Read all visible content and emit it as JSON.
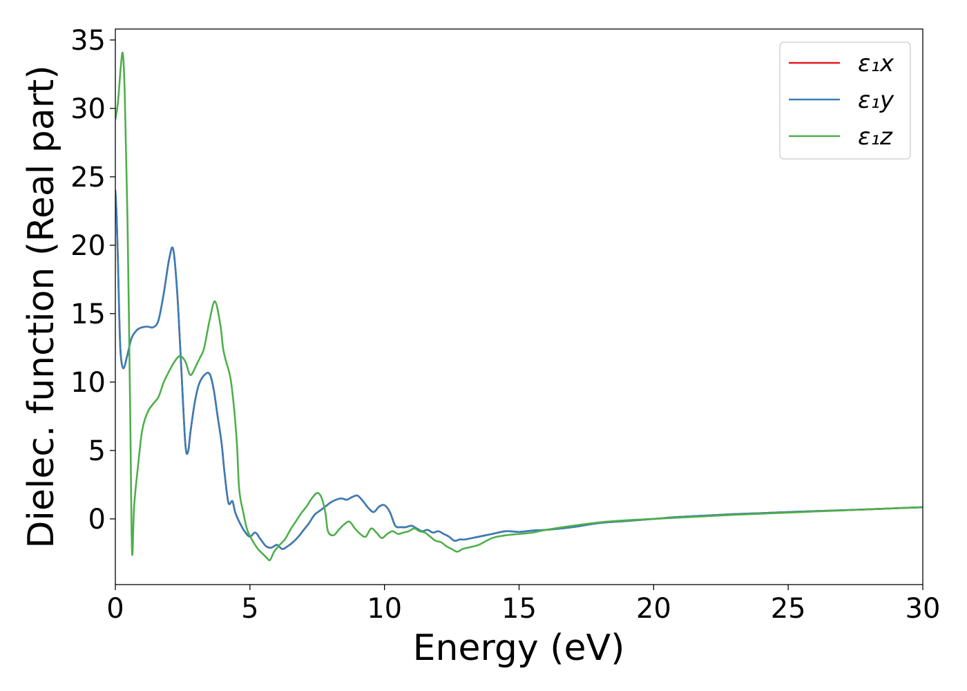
{
  "chart_data": {
    "type": "line",
    "title": "",
    "xlabel": "Energy (eV)",
    "ylabel": "Dielec. function (Real part)",
    "xlim": [
      0,
      30
    ],
    "ylim": [
      -4.8,
      35.8
    ],
    "xticks": [
      "0",
      "5",
      "10",
      "15",
      "20",
      "25",
      "30"
    ],
    "yticks": [
      "0",
      "5",
      "10",
      "15",
      "20",
      "25",
      "30",
      "35"
    ],
    "grid": false,
    "legend_position": "top-right",
    "series": [
      {
        "name": "ε₁x",
        "color": "#e41a1c",
        "x": [
          0,
          0.05,
          0.1,
          0.15,
          0.2,
          0.3,
          0.45,
          0.6,
          0.8,
          1.0,
          1.2,
          1.4,
          1.6,
          1.8,
          2.0,
          2.15,
          2.3,
          2.45,
          2.6,
          2.7,
          2.8,
          2.95,
          3.1,
          3.3,
          3.5,
          3.65,
          3.8,
          3.95,
          4.05,
          4.2,
          4.35,
          4.45,
          4.6,
          4.8,
          5.0,
          5.2,
          5.4,
          5.6,
          5.8,
          6.0,
          6.2,
          6.4,
          6.6,
          6.8,
          7.0,
          7.2,
          7.4,
          7.6,
          7.8,
          8.0,
          8.2,
          8.4,
          8.6,
          8.8,
          9.0,
          9.2,
          9.4,
          9.6,
          9.8,
          10.0,
          10.2,
          10.4,
          10.6,
          10.8,
          11.0,
          11.2,
          11.4,
          11.6,
          11.8,
          12.0,
          12.2,
          12.4,
          12.6,
          12.8,
          13.0,
          13.5,
          14.0,
          14.5,
          15.0,
          15.5,
          16.0,
          17.0,
          18.0,
          19.0,
          20.0,
          21.0,
          22.0,
          23.0,
          24.0,
          25.0,
          26.0,
          27.0,
          28.0,
          29.0,
          30.0
        ],
        "values": [
          24.0,
          22.0,
          18.5,
          14.5,
          12.0,
          11.0,
          12.0,
          13.2,
          13.8,
          14.0,
          14.05,
          14.0,
          14.5,
          16.5,
          19.0,
          19.7,
          16.5,
          11.0,
          5.5,
          4.9,
          6.5,
          8.5,
          9.8,
          10.5,
          10.6,
          9.5,
          7.5,
          5.5,
          3.5,
          1.2,
          1.3,
          0.5,
          -0.2,
          -0.9,
          -1.3,
          -1.0,
          -1.5,
          -2.0,
          -2.1,
          -1.9,
          -2.2,
          -2.0,
          -1.7,
          -1.3,
          -0.8,
          -0.3,
          0.3,
          0.6,
          0.9,
          1.2,
          1.4,
          1.5,
          1.4,
          1.6,
          1.7,
          1.3,
          0.8,
          0.5,
          0.9,
          1.0,
          0.5,
          -0.5,
          -0.6,
          -0.6,
          -0.5,
          -0.7,
          -0.9,
          -0.8,
          -1.0,
          -0.9,
          -1.1,
          -1.3,
          -1.6,
          -1.5,
          -1.5,
          -1.3,
          -1.1,
          -0.9,
          -0.95,
          -0.85,
          -0.8,
          -0.6,
          -0.3,
          -0.15,
          0.0,
          0.15,
          0.25,
          0.35,
          0.42,
          0.5,
          0.57,
          0.63,
          0.7,
          0.78,
          0.85
        ]
      },
      {
        "name": "ε₁y",
        "color": "#377eb8",
        "x": [
          0,
          0.05,
          0.1,
          0.15,
          0.2,
          0.3,
          0.45,
          0.6,
          0.8,
          1.0,
          1.2,
          1.4,
          1.6,
          1.8,
          2.0,
          2.15,
          2.3,
          2.45,
          2.6,
          2.7,
          2.8,
          2.95,
          3.1,
          3.3,
          3.5,
          3.65,
          3.8,
          3.95,
          4.05,
          4.2,
          4.35,
          4.45,
          4.6,
          4.8,
          5.0,
          5.2,
          5.4,
          5.6,
          5.8,
          6.0,
          6.2,
          6.4,
          6.6,
          6.8,
          7.0,
          7.2,
          7.4,
          7.6,
          7.8,
          8.0,
          8.2,
          8.4,
          8.6,
          8.8,
          9.0,
          9.2,
          9.4,
          9.6,
          9.8,
          10.0,
          10.2,
          10.4,
          10.6,
          10.8,
          11.0,
          11.2,
          11.4,
          11.6,
          11.8,
          12.0,
          12.2,
          12.4,
          12.6,
          12.8,
          13.0,
          13.5,
          14.0,
          14.5,
          15.0,
          15.5,
          16.0,
          17.0,
          18.0,
          19.0,
          20.0,
          21.0,
          22.0,
          23.0,
          24.0,
          25.0,
          26.0,
          27.0,
          28.0,
          29.0,
          30.0
        ],
        "values": [
          24.0,
          22.0,
          18.5,
          14.5,
          12.0,
          11.0,
          12.0,
          13.2,
          13.8,
          14.0,
          14.05,
          14.0,
          14.5,
          16.5,
          19.0,
          19.7,
          16.5,
          11.0,
          5.5,
          4.9,
          6.5,
          8.5,
          9.8,
          10.5,
          10.6,
          9.5,
          7.5,
          5.5,
          3.5,
          1.2,
          1.3,
          0.5,
          -0.2,
          -0.9,
          -1.3,
          -1.0,
          -1.5,
          -2.0,
          -2.1,
          -1.9,
          -2.2,
          -2.0,
          -1.7,
          -1.3,
          -0.8,
          -0.3,
          0.3,
          0.6,
          0.9,
          1.2,
          1.4,
          1.5,
          1.4,
          1.6,
          1.7,
          1.3,
          0.8,
          0.5,
          0.9,
          1.0,
          0.5,
          -0.5,
          -0.6,
          -0.6,
          -0.5,
          -0.7,
          -0.9,
          -0.8,
          -1.0,
          -0.9,
          -1.1,
          -1.3,
          -1.6,
          -1.5,
          -1.5,
          -1.3,
          -1.1,
          -0.9,
          -0.95,
          -0.85,
          -0.8,
          -0.6,
          -0.3,
          -0.15,
          0.0,
          0.15,
          0.25,
          0.35,
          0.42,
          0.5,
          0.57,
          0.63,
          0.7,
          0.78,
          0.85
        ]
      },
      {
        "name": "ε₁z",
        "color": "#4daf4a",
        "x": [
          0,
          0.1,
          0.2,
          0.28,
          0.35,
          0.45,
          0.55,
          0.62,
          0.7,
          0.85,
          1.0,
          1.2,
          1.4,
          1.6,
          1.8,
          2.0,
          2.2,
          2.4,
          2.6,
          2.75,
          2.85,
          3.0,
          3.15,
          3.3,
          3.5,
          3.7,
          3.9,
          4.0,
          4.1,
          4.3,
          4.5,
          4.6,
          4.75,
          4.9,
          5.1,
          5.3,
          5.5,
          5.65,
          5.75,
          5.9,
          6.1,
          6.3,
          6.5,
          6.7,
          6.9,
          7.1,
          7.3,
          7.5,
          7.65,
          7.8,
          7.9,
          8.1,
          8.3,
          8.5,
          8.7,
          8.9,
          9.1,
          9.3,
          9.5,
          9.7,
          9.9,
          10.1,
          10.3,
          10.5,
          10.7,
          10.9,
          11.1,
          11.3,
          11.5,
          11.7,
          11.9,
          12.1,
          12.3,
          12.5,
          12.7,
          12.9,
          13.1,
          13.5,
          14.0,
          14.5,
          15.0,
          15.5,
          16.0,
          17.0,
          18.0,
          19.0,
          20.0,
          21.0,
          22.0,
          23.0,
          24.0,
          25.0,
          26.0,
          27.0,
          28.0,
          29.0,
          30.0
        ],
        "values": [
          29.2,
          30.5,
          33.0,
          34.0,
          31.0,
          22.0,
          8.0,
          -2.4,
          1.0,
          4.0,
          6.5,
          7.8,
          8.4,
          8.9,
          10.0,
          10.8,
          11.5,
          11.9,
          11.5,
          10.6,
          10.6,
          11.2,
          11.8,
          12.5,
          14.5,
          15.9,
          14.2,
          12.5,
          11.6,
          10.0,
          6.0,
          2.2,
          0.5,
          -0.8,
          -1.6,
          -2.2,
          -2.6,
          -2.9,
          -3.0,
          -2.4,
          -1.9,
          -1.5,
          -0.8,
          -0.2,
          0.4,
          0.9,
          1.5,
          1.9,
          1.6,
          0.5,
          -0.9,
          -1.2,
          -0.8,
          -0.4,
          -0.2,
          -0.7,
          -1.1,
          -1.3,
          -0.7,
          -1.0,
          -1.4,
          -1.1,
          -0.9,
          -1.1,
          -1.0,
          -0.9,
          -0.7,
          -0.9,
          -1.0,
          -1.3,
          -1.6,
          -1.7,
          -2.0,
          -2.2,
          -2.4,
          -2.2,
          -2.1,
          -1.9,
          -1.4,
          -1.2,
          -1.1,
          -1.0,
          -0.8,
          -0.5,
          -0.25,
          -0.1,
          0.0,
          0.1,
          0.2,
          0.3,
          0.38,
          0.46,
          0.54,
          0.62,
          0.7,
          0.78,
          0.86
        ]
      }
    ]
  }
}
